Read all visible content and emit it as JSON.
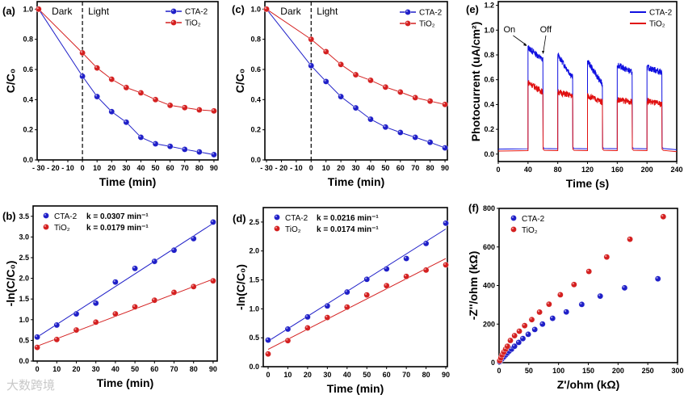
{
  "watermark": "大数跨境",
  "colors": {
    "cta": "#1f1fc8",
    "tio2": "#d42020"
  },
  "chart_data": [
    {
      "id": "a",
      "panel_label": "(a)",
      "type": "line",
      "xlabel": "Time (min)",
      "ylabel": "C/C₀",
      "xlim": [
        -31,
        92.8
      ],
      "ylim": [
        0,
        1.05
      ],
      "xticks": [
        -30,
        -20,
        -10,
        0,
        10,
        20,
        30,
        40,
        50,
        60,
        70,
        80,
        90
      ],
      "yticks": [
        0.0,
        0.2,
        0.4,
        0.6,
        0.8,
        1.0
      ],
      "ytick_decimals": 1,
      "annotations": [
        {
          "text": "Dark"
        },
        {
          "text": "Light"
        }
      ],
      "divider_x": 0,
      "x": [
        -30,
        0,
        10,
        20,
        30,
        40,
        50,
        60,
        70,
        80,
        90
      ],
      "series": [
        {
          "name": "CTA-2",
          "color": "#1f1fc8",
          "values": [
            1.0,
            0.555,
            0.42,
            0.32,
            0.25,
            0.15,
            0.107,
            0.09,
            0.07,
            0.053,
            0.035
          ]
        },
        {
          "name": "TiO₂",
          "color": "#d42020",
          "values": [
            1.0,
            0.71,
            0.61,
            0.535,
            0.48,
            0.445,
            0.4,
            0.362,
            0.347,
            0.332,
            0.325
          ]
        }
      ]
    },
    {
      "id": "c",
      "panel_label": "(c)",
      "type": "line",
      "xlabel": "Time (min)",
      "ylabel": "C/C₀",
      "xlim": [
        -31.1,
        91.6
      ],
      "ylim": [
        0,
        1.05
      ],
      "xticks": [
        -30,
        -20,
        -10,
        0,
        10,
        20,
        30,
        40,
        50,
        60,
        70,
        80,
        90
      ],
      "yticks": [
        0.0,
        0.2,
        0.4,
        0.6,
        0.8,
        1.0
      ],
      "ytick_decimals": 1,
      "annotations": [
        {
          "text": "Dark"
        },
        {
          "text": "Light"
        }
      ],
      "divider_x": 0,
      "x": [
        -30,
        0,
        10,
        20,
        30,
        40,
        50,
        60,
        70,
        80,
        90
      ],
      "series": [
        {
          "name": "CTA-2",
          "color": "#1f1fc8",
          "values": [
            1.0,
            0.625,
            0.52,
            0.42,
            0.345,
            0.27,
            0.218,
            0.182,
            0.15,
            0.117,
            0.08
          ]
        },
        {
          "name": "TiO₂",
          "color": "#d42020",
          "values": [
            1.0,
            0.8,
            0.718,
            0.633,
            0.565,
            0.528,
            0.483,
            0.45,
            0.413,
            0.39,
            0.368
          ]
        }
      ]
    },
    {
      "id": "e",
      "panel_label": "(e)",
      "type": "line",
      "xlabel": "Time (s)",
      "ylabel": "Photocurrent (uA/cm²)",
      "xlim": [
        0,
        240
      ],
      "ylim": [
        -0.06,
        1.23
      ],
      "xticks": [
        0,
        40,
        80,
        120,
        160,
        200,
        240
      ],
      "yticks": [
        0.0,
        0.2,
        0.4,
        0.6,
        0.8,
        1.0,
        1.2
      ],
      "ytick_decimals": 1,
      "annotations": [
        {
          "text": "On"
        },
        {
          "text": "Off"
        }
      ],
      "on_intervals": [
        [
          40,
          60
        ],
        [
          80,
          100
        ],
        [
          120,
          140
        ],
        [
          160,
          180
        ],
        [
          200,
          220
        ]
      ],
      "series": [
        {
          "name": "CTA-2",
          "color": "#1010e0",
          "dark": 0.04,
          "on_levels": [
            [
              0.86,
              0.76
            ],
            [
              0.8,
              0.62
            ],
            [
              0.75,
              0.56
            ],
            [
              0.72,
              0.66
            ],
            [
              0.7,
              0.66
            ]
          ]
        },
        {
          "name": "TiO₂",
          "color": "#e01010",
          "dark": 0.025,
          "on_levels": [
            [
              0.58,
              0.5
            ],
            [
              0.5,
              0.47
            ],
            [
              0.47,
              0.42
            ],
            [
              0.44,
              0.42
            ],
            [
              0.43,
              0.4
            ]
          ]
        }
      ]
    },
    {
      "id": "b",
      "panel_label": "(b)",
      "type": "scatter",
      "xlabel": "Time (min)",
      "ylabel": "-ln(C/C₀)",
      "xlim": [
        -2.1,
        92.1
      ],
      "ylim": [
        0,
        3.75
      ],
      "xticks": [
        0,
        10,
        20,
        30,
        40,
        50,
        60,
        70,
        80,
        90
      ],
      "yticks": [
        0.0,
        0.5,
        1.0,
        1.5,
        2.0,
        2.5,
        3.0,
        3.5
      ],
      "ytick_decimals": 1,
      "x": [
        0,
        10,
        20,
        30,
        40,
        50,
        60,
        70,
        80,
        90
      ],
      "series": [
        {
          "name": "CTA-2",
          "k_label": "k = 0.0307 min⁻¹",
          "color": "#1f1fc8",
          "values": [
            0.58,
            0.87,
            1.14,
            1.4,
            1.91,
            2.24,
            2.41,
            2.68,
            2.96,
            3.36
          ],
          "fit": [
            0.58,
            3.33
          ]
        },
        {
          "name": "TiO₂",
          "k_label": "k = 0.0179 min⁻¹",
          "color": "#d42020",
          "values": [
            0.33,
            0.52,
            0.75,
            0.94,
            1.14,
            1.31,
            1.47,
            1.66,
            1.8,
            1.94
          ],
          "fit": [
            0.36,
            1.98
          ]
        }
      ]
    },
    {
      "id": "d",
      "panel_label": "(d)",
      "type": "scatter",
      "xlabel": "Time (min)",
      "ylabel": "-ln(C/C₀)",
      "xlim": [
        -2.45,
        90.8
      ],
      "ylim": [
        0,
        2.75
      ],
      "xticks": [
        0,
        10,
        20,
        30,
        40,
        50,
        60,
        70,
        80,
        90
      ],
      "yticks": [
        0.0,
        0.5,
        1.0,
        1.5,
        2.0,
        2.5
      ],
      "ytick_decimals": 1,
      "x": [
        0,
        10,
        20,
        30,
        40,
        50,
        60,
        70,
        80,
        90
      ],
      "series": [
        {
          "name": "CTA-2",
          "k_label": "k = 0.0216 min⁻¹",
          "color": "#1f1fc8",
          "values": [
            0.46,
            0.65,
            0.86,
            1.05,
            1.29,
            1.51,
            1.69,
            1.87,
            2.13,
            2.48
          ],
          "fit": [
            0.44,
            2.38
          ]
        },
        {
          "name": "TiO₂",
          "k_label": "k = 0.0174 min⁻¹",
          "color": "#d42020",
          "values": [
            0.22,
            0.45,
            0.67,
            0.85,
            1.03,
            1.24,
            1.4,
            1.56,
            1.67,
            1.76
          ],
          "fit": [
            0.3,
            1.87
          ]
        }
      ]
    },
    {
      "id": "f",
      "panel_label": "(f)",
      "type": "scatter",
      "xlabel": "Z'/ohm (kΩ)",
      "ylabel": "-Z''/ohm (kΩ)",
      "xlim": [
        0,
        300
      ],
      "ylim": [
        0,
        800
      ],
      "xticks": [
        0,
        50,
        100,
        150,
        200,
        250,
        300
      ],
      "yticks": [
        0,
        200,
        400,
        600,
        800
      ],
      "ytick_decimals": 0,
      "series": [
        {
          "name": "CTA-2",
          "color": "#1f1fc8",
          "points": [
            [
              1,
              5
            ],
            [
              3,
              12
            ],
            [
              5,
              20
            ],
            [
              8,
              30
            ],
            [
              11,
              40
            ],
            [
              14,
              50
            ],
            [
              17,
              60
            ],
            [
              21,
              70
            ],
            [
              26,
              85
            ],
            [
              33,
              105
            ],
            [
              40,
              125
            ],
            [
              49,
              147
            ],
            [
              60,
              172
            ],
            [
              73,
              200
            ],
            [
              90,
              230
            ],
            [
              113,
              263
            ],
            [
              139,
              302
            ],
            [
              170,
              345
            ],
            [
              211,
              388
            ],
            [
              267,
              435
            ]
          ]
        },
        {
          "name": "TiO₂",
          "color": "#d42020",
          "points": [
            [
              1,
              10
            ],
            [
              3,
              25
            ],
            [
              5,
              40
            ],
            [
              8,
              55
            ],
            [
              11,
              70
            ],
            [
              14,
              85
            ],
            [
              19,
              115
            ],
            [
              26,
              140
            ],
            [
              34,
              163
            ],
            [
              43,
              192
            ],
            [
              55,
              223
            ],
            [
              68,
              262
            ],
            [
              84,
              303
            ],
            [
              103,
              352
            ],
            [
              126,
              405
            ],
            [
              151,
              473
            ],
            [
              181,
              548
            ],
            [
              220,
              640
            ],
            [
              276,
              757
            ]
          ]
        }
      ]
    }
  ]
}
